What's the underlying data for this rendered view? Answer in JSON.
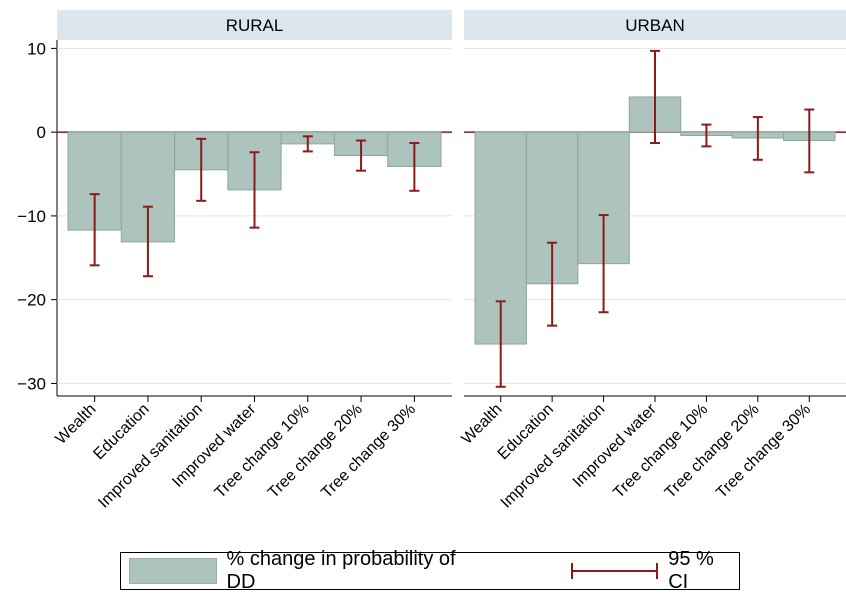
{
  "chart_data": {
    "type": "bar",
    "categories": [
      "Wealth",
      "Education",
      "Improved sanitation",
      "Improved water",
      "Tree change 10%",
      "Tree change 20%",
      "Tree change 30%"
    ],
    "ylim": [
      -31.5,
      11
    ],
    "yticks": [
      10,
      0,
      -10,
      -20,
      -30
    ],
    "ytick_labels": [
      "10",
      "0",
      "−10",
      "−20",
      "−30"
    ],
    "grid": true,
    "legend_position": "bottom",
    "colors": {
      "bar": "#adc3bd",
      "bar_edge": "#8fa6a0",
      "ci": "#8b1a1a",
      "strip": "#dce6ee",
      "grid": "#e4e4e4"
    },
    "panels": [
      {
        "title": "RURAL",
        "values": [
          -11.7,
          -13.1,
          -4.5,
          -6.9,
          -1.4,
          -2.8,
          -4.1
        ],
        "ci_low": [
          -15.9,
          -17.2,
          -8.2,
          -11.4,
          -2.3,
          -4.6,
          -7.0
        ],
        "ci_high": [
          -7.4,
          -8.9,
          -0.8,
          -2.4,
          -0.5,
          -1.0,
          -1.3
        ]
      },
      {
        "title": "URBAN",
        "values": [
          -25.3,
          -18.1,
          -15.7,
          4.2,
          -0.4,
          -0.7,
          -1.0
        ],
        "ci_low": [
          -30.4,
          -23.1,
          -21.5,
          -1.3,
          -1.7,
          -3.3,
          -4.8
        ],
        "ci_high": [
          -20.2,
          -13.2,
          -9.9,
          9.7,
          0.9,
          1.8,
          2.7
        ]
      }
    ],
    "legend": {
      "bar_label": "% change in probability of DD",
      "ci_label": "95 % CI"
    }
  }
}
